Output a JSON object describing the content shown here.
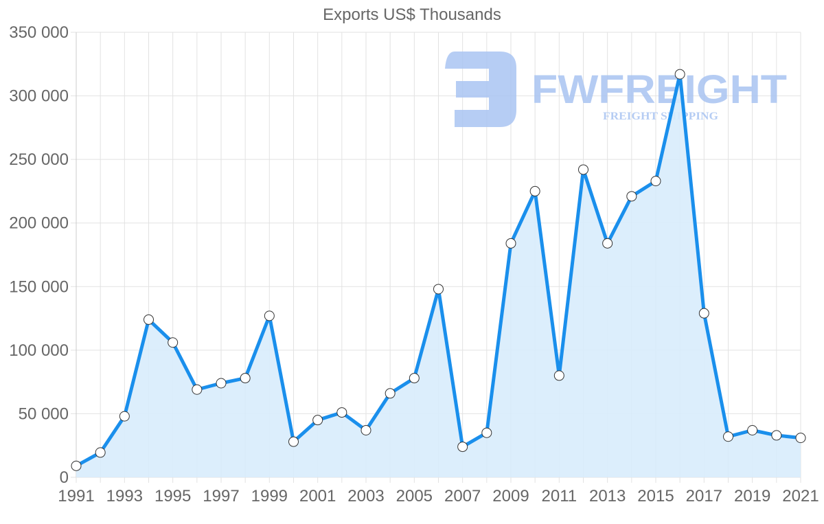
{
  "chart_data": {
    "type": "line",
    "title": "Exports US$ Thousands",
    "xlabel": "",
    "ylabel": "",
    "x": [
      1991,
      1992,
      1993,
      1994,
      1995,
      1996,
      1997,
      1998,
      1999,
      2000,
      2001,
      2002,
      2003,
      2004,
      2005,
      2006,
      2007,
      2008,
      2009,
      2010,
      2011,
      2012,
      2013,
      2014,
      2015,
      2016,
      2017,
      2018,
      2019,
      2020,
      2021
    ],
    "series": [
      {
        "name": "Exports US$ Thousands",
        "values": [
          9000,
          19500,
          48000,
          124000,
          106000,
          69000,
          74000,
          78000,
          127000,
          28000,
          45000,
          51000,
          37000,
          66000,
          78000,
          148000,
          24000,
          35000,
          184000,
          225000,
          80000,
          242000,
          184000,
          221000,
          233000,
          317000,
          129000,
          32000,
          37000,
          33000,
          31000
        ],
        "fill": true
      }
    ],
    "ylim": [
      0,
      350000
    ],
    "yticks": [
      0,
      50000,
      100000,
      150000,
      200000,
      250000,
      300000,
      350000
    ],
    "ytick_labels": [
      "0",
      "50 000",
      "100 000",
      "150 000",
      "200 000",
      "250 000",
      "300 000",
      "350 000"
    ],
    "xtick_labels": [
      "1991",
      "1993",
      "1995",
      "1997",
      "1999",
      "2001",
      "2003",
      "2005",
      "2007",
      "2009",
      "2011",
      "2013",
      "2015",
      "2017",
      "2019",
      "2021"
    ],
    "grid": true,
    "legend": "none",
    "colors": {
      "line": "#1a8fec",
      "fill": "#d8ecfc",
      "point_fill": "#ffffff",
      "point_stroke": "#333333",
      "grid": "#e2e2e2",
      "text": "#666666"
    }
  },
  "watermark": {
    "brand": "FWFREIGHT",
    "tagline": "FREIGHT SHIPPING",
    "color": "#a9c4f2"
  }
}
